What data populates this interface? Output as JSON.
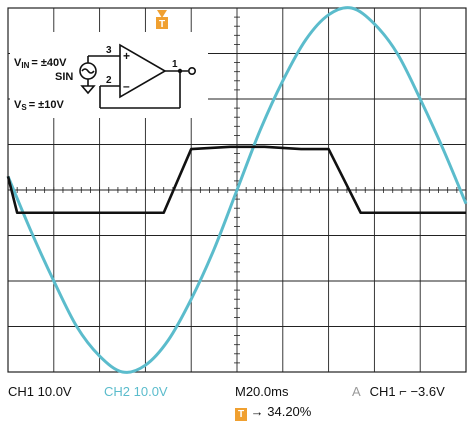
{
  "colors": {
    "ch1": "#111111",
    "ch2": "#5bbccc",
    "grid": "#222222",
    "trigger": "#f0a030"
  },
  "chart_data": {
    "type": "line",
    "title": "",
    "xlabel": "",
    "ylabel": "",
    "grid": true,
    "divisions": {
      "x": 10,
      "y": 8
    },
    "xlim": [
      0,
      200
    ],
    "ylim": [
      -40,
      40
    ],
    "x_unit": "ms",
    "y_unit": "V",
    "series": [
      {
        "name": "CH1",
        "desc": "output clamped at supply",
        "x": [
          0,
          4,
          68,
          80,
          97,
          112,
          128,
          140,
          154,
          200
        ],
        "y": [
          3,
          -5,
          -5,
          9,
          9.5,
          9.5,
          9,
          9,
          -5,
          -5
        ]
      },
      {
        "name": "CH2",
        "desc": "input sine ±40V",
        "x": [
          0,
          10,
          20,
          30,
          40,
          50,
          60,
          70,
          80,
          90,
          100,
          110,
          120,
          130,
          140,
          150,
          160,
          170,
          180,
          190,
          200
        ],
        "y": [
          3,
          -9,
          -20,
          -30,
          -36.5,
          -40,
          -38.5,
          -33,
          -24,
          -13,
          0,
          13,
          24,
          33,
          38.5,
          40,
          36.5,
          30,
          20,
          9,
          -3
        ]
      }
    ]
  },
  "status": {
    "ch1": "CH1  10.0V",
    "ch2": "CH2  10.0V",
    "timebase": "M20.0ms",
    "trigger_mode": "A",
    "trigger": "CH1",
    "trigger_slope_glyph": "⌐",
    "trigger_level": "−3.6V",
    "trigger_badge": "T",
    "trigger_arrow": "→",
    "trigger_position": "34.20%"
  },
  "inset": {
    "vin_label": "V",
    "vin_sub": "IN",
    "vin_value": "= ±40V",
    "source": "SIN",
    "vs_label": "V",
    "vs_sub": "S",
    "vs_value": "= ±10V",
    "pin3": "3",
    "pin2": "2",
    "pin1": "1",
    "plus": "+",
    "minus": "–",
    "marker": "T"
  }
}
